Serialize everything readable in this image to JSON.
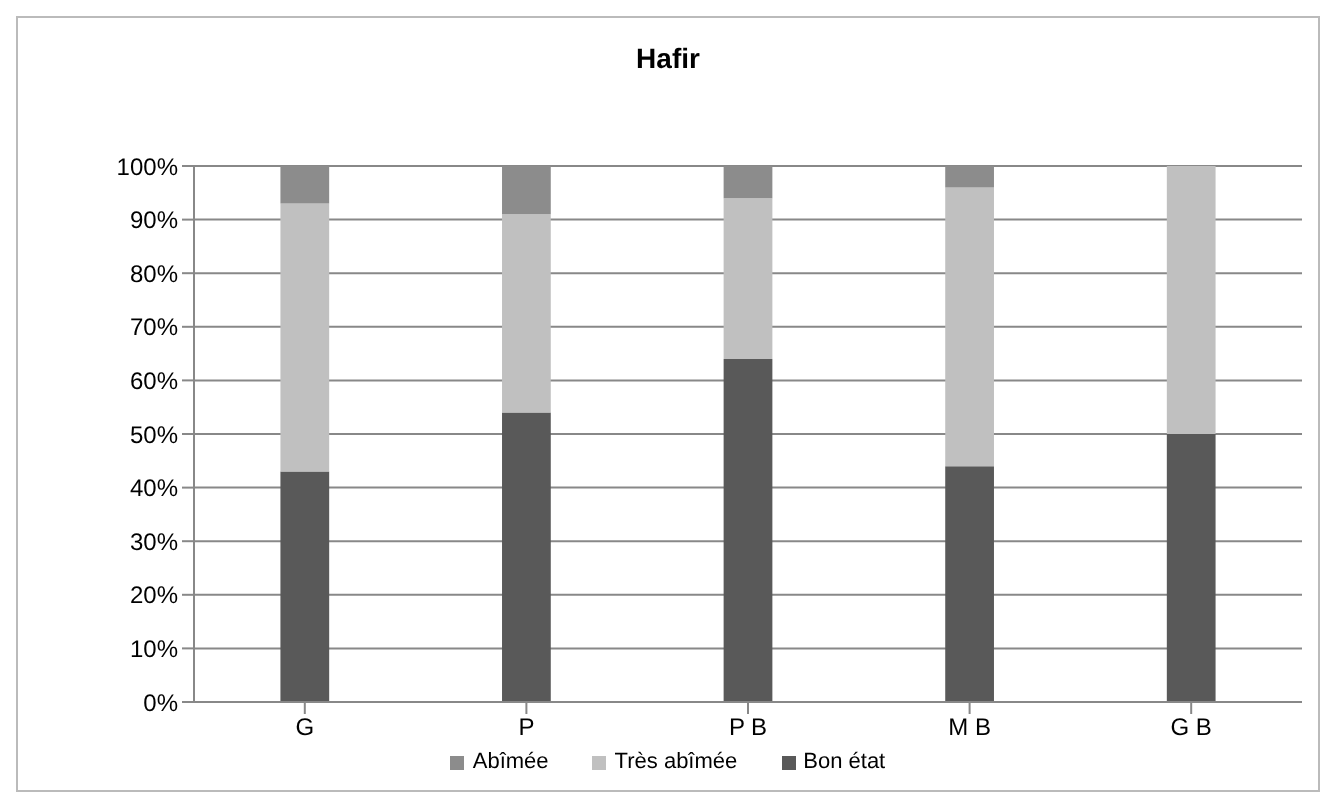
{
  "chart_data": {
    "type": "bar",
    "title": "Hafir",
    "categories": [
      "G",
      "P",
      "P B",
      "M B",
      "G B"
    ],
    "stacked": true,
    "series": [
      {
        "name": "Bon état",
        "color": "#595959",
        "values": [
          43,
          54,
          64,
          44,
          50
        ]
      },
      {
        "name": "Très abîmée",
        "color": "#c0c0c0",
        "values": [
          50,
          37,
          30,
          52,
          50
        ]
      },
      {
        "name": "Abîmée",
        "color": "#8c8c8c",
        "values": [
          7,
          9,
          6,
          4,
          0
        ]
      }
    ],
    "ylim": [
      0,
      100
    ],
    "yticks": [
      {
        "value": 0,
        "label": "0%"
      },
      {
        "value": 10,
        "label": "10%"
      },
      {
        "value": 20,
        "label": "20%"
      },
      {
        "value": 30,
        "label": "30%"
      },
      {
        "value": 40,
        "label": "40%"
      },
      {
        "value": 50,
        "label": "50%"
      },
      {
        "value": 60,
        "label": "60%"
      },
      {
        "value": 70,
        "label": "70%"
      },
      {
        "value": 80,
        "label": "80%"
      },
      {
        "value": 90,
        "label": "90%"
      },
      {
        "value": 100,
        "label": "100%"
      }
    ],
    "grid": "y",
    "legend": "bottom"
  }
}
